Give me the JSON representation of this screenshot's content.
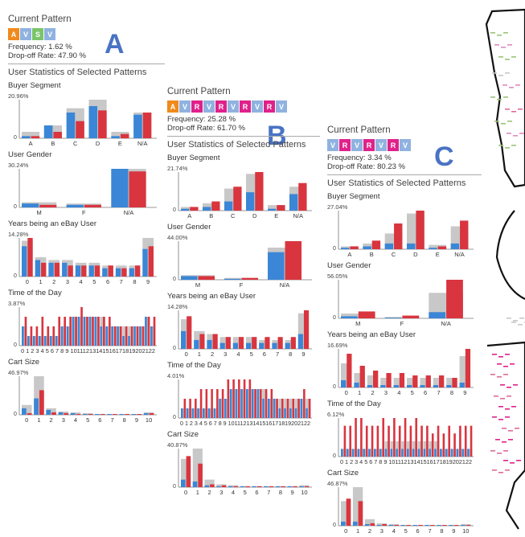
{
  "letters": [
    "A",
    "B",
    "C"
  ],
  "labels": {
    "current_pattern": "Current Pattern",
    "user_stats": "User Statistics of Selected Patterns",
    "frequency_prefix": "Frequency: ",
    "dropoff_prefix": "Drop-off Rate: "
  },
  "colors": {
    "blue": "#3b86d6",
    "red": "#d9353f",
    "gray": "#c8c8c8",
    "grid": "#666",
    "chip_A": "#f08a1c",
    "chip_V": "#8fb2e0",
    "chip_R": "#e0218a",
    "chip_S": "#7cc46a"
  },
  "panels": [
    {
      "id": "A",
      "pattern": [
        "A",
        "V",
        "S",
        "V"
      ],
      "frequency": "1.62 %",
      "dropoff": "47.90 %"
    },
    {
      "id": "B",
      "pattern": [
        "A",
        "V",
        "R",
        "V",
        "R",
        "V",
        "R",
        "V",
        "R",
        "V"
      ],
      "frequency": "25.28 %",
      "dropoff": "61.70 %"
    },
    {
      "id": "C",
      "pattern": [
        "V",
        "R",
        "V",
        "R",
        "V",
        "R",
        "V"
      ],
      "frequency": "3.34 %",
      "dropoff": "80.23 %"
    }
  ],
  "chart_data": [
    {
      "panel": "A",
      "title": "Buyer Segment",
      "ymax_label": "20.96%",
      "type": "bar",
      "categories": [
        "A",
        "B",
        "C",
        "D",
        "E",
        "N/A"
      ],
      "series": [
        {
          "name": "gray",
          "values": [
            3,
            6,
            14,
            18,
            3,
            12
          ]
        },
        {
          "name": "blue",
          "values": [
            1,
            6,
            12,
            15,
            1,
            11
          ]
        },
        {
          "name": "red",
          "values": [
            1,
            3,
            8,
            13,
            2,
            12
          ]
        }
      ]
    },
    {
      "panel": "A",
      "title": "User Gender",
      "ymax_label": "30.24%",
      "type": "bar",
      "categories": [
        "M",
        "F",
        "N/A"
      ],
      "series": [
        {
          "name": "gray",
          "values": [
            4,
            3,
            30
          ]
        },
        {
          "name": "blue",
          "values": [
            3,
            2,
            30
          ]
        },
        {
          "name": "red",
          "values": [
            2,
            2,
            28
          ]
        }
      ]
    },
    {
      "panel": "A",
      "title": "Years being an eBay User",
      "ymax_label": "14.28%",
      "type": "bar",
      "categories": [
        "0",
        "1",
        "2",
        "3",
        "4",
        "5",
        "6",
        "7",
        "8",
        "9"
      ],
      "series": [
        {
          "name": "gray",
          "values": [
            13,
            7,
            6,
            6,
            5,
            5,
            4,
            4,
            4,
            14
          ]
        },
        {
          "name": "blue",
          "values": [
            11,
            6,
            5,
            5,
            4,
            4,
            3,
            3,
            3,
            10
          ]
        },
        {
          "name": "red",
          "values": [
            14,
            5,
            5,
            4,
            4,
            4,
            4,
            3,
            4,
            11
          ]
        }
      ]
    },
    {
      "panel": "A",
      "title": "Time of the Day",
      "ymax_label": "3.87%",
      "type": "bar",
      "categories": [
        "0",
        "1",
        "2",
        "3",
        "4",
        "5",
        "6",
        "7",
        "8",
        "9",
        "10",
        "11",
        "12",
        "13",
        "14",
        "15",
        "16",
        "17",
        "18",
        "19",
        "20",
        "21",
        "22",
        "23"
      ],
      "tick_text": "0 1 2 3 4 5 6 7 8 9 10111213141516171819202122",
      "series": [
        {
          "name": "gray",
          "values": [
            2,
            1,
            1,
            1,
            1,
            1,
            1,
            2,
            2,
            3,
            3,
            3,
            3,
            3,
            3,
            2,
            2,
            2,
            2,
            2,
            2,
            2,
            3,
            2
          ]
        },
        {
          "name": "blue",
          "values": [
            2,
            1,
            1,
            1,
            1,
            1,
            1,
            2,
            2,
            3,
            3,
            3,
            3,
            3,
            2,
            2,
            2,
            2,
            1,
            1,
            2,
            2,
            3,
            2
          ]
        },
        {
          "name": "red",
          "values": [
            3,
            2,
            2,
            3,
            2,
            2,
            3,
            3,
            3,
            3,
            4,
            3,
            3,
            3,
            3,
            3,
            2,
            2,
            2,
            2,
            2,
            2,
            3,
            3
          ]
        }
      ]
    },
    {
      "panel": "A",
      "title": "Cart Size",
      "ymax_label": "46.97%",
      "type": "bar",
      "categories": [
        "0",
        "1",
        "2",
        "3",
        "4",
        "5",
        "6",
        "7",
        "8",
        "9",
        "10"
      ],
      "series": [
        {
          "name": "gray",
          "values": [
            12,
            47,
            8,
            4,
            3,
            2,
            1,
            1,
            1,
            1,
            3
          ]
        },
        {
          "name": "blue",
          "values": [
            8,
            20,
            6,
            3,
            2,
            1,
            1,
            1,
            1,
            1,
            2
          ]
        },
        {
          "name": "red",
          "values": [
            2,
            30,
            3,
            2,
            1,
            1,
            1,
            1,
            1,
            1,
            2
          ]
        }
      ]
    },
    {
      "panel": "B",
      "title": "Buyer Segment",
      "ymax_label": "21.74%",
      "type": "bar",
      "categories": [
        "A",
        "B",
        "C",
        "D",
        "E",
        "N/A"
      ],
      "series": [
        {
          "name": "gray",
          "values": [
            2,
            4,
            12,
            20,
            3,
            13
          ]
        },
        {
          "name": "blue",
          "values": [
            1,
            2,
            5,
            10,
            1,
            9
          ]
        },
        {
          "name": "red",
          "values": [
            2,
            5,
            13,
            21,
            3,
            15
          ]
        }
      ]
    },
    {
      "panel": "B",
      "title": "User Gender",
      "ymax_label": "44.00%",
      "type": "bar",
      "categories": [
        "M",
        "F",
        "N/A"
      ],
      "series": [
        {
          "name": "gray",
          "values": [
            5,
            2,
            35
          ]
        },
        {
          "name": "blue",
          "values": [
            4,
            1,
            30
          ]
        },
        {
          "name": "red",
          "values": [
            4,
            2,
            42
          ]
        }
      ]
    },
    {
      "panel": "B",
      "title": "Years being an eBay User",
      "ymax_label": "14.28%",
      "type": "bar",
      "categories": [
        "0",
        "1",
        "2",
        "3",
        "4",
        "5",
        "6",
        "7",
        "8",
        "9"
      ],
      "series": [
        {
          "name": "gray",
          "values": [
            10,
            6,
            5,
            4,
            4,
            4,
            3,
            3,
            3,
            12
          ]
        },
        {
          "name": "blue",
          "values": [
            6,
            3,
            3,
            2,
            2,
            2,
            2,
            2,
            2,
            5
          ]
        },
        {
          "name": "red",
          "values": [
            11,
            5,
            5,
            4,
            4,
            4,
            4,
            4,
            4,
            13
          ]
        }
      ]
    },
    {
      "panel": "B",
      "title": "Time of the Day",
      "ymax_label": "4.01%",
      "type": "bar",
      "categories": [
        "0",
        "1",
        "2",
        "3",
        "4",
        "5",
        "6",
        "7",
        "8",
        "9",
        "10",
        "11",
        "12",
        "13",
        "14",
        "15",
        "16",
        "17",
        "18",
        "19",
        "20",
        "21",
        "22",
        "23"
      ],
      "tick_text": "0 1 2 3 4 5 6 7 8 9 10111213141516171819202122",
      "series": [
        {
          "name": "gray",
          "values": [
            1,
            1,
            1,
            1,
            1,
            1,
            1,
            2,
            2,
            3,
            3,
            3,
            3,
            3,
            3,
            3,
            2,
            2,
            2,
            2,
            2,
            2,
            2,
            2
          ]
        },
        {
          "name": "blue",
          "values": [
            1,
            1,
            1,
            1,
            1,
            1,
            1,
            2,
            2,
            3,
            3,
            3,
            3,
            3,
            3,
            2,
            2,
            2,
            1,
            1,
            1,
            1,
            2,
            1
          ]
        },
        {
          "name": "red",
          "values": [
            2,
            2,
            2,
            3,
            3,
            3,
            3,
            3,
            4,
            4,
            4,
            4,
            4,
            3,
            3,
            3,
            3,
            2,
            2,
            2,
            2,
            2,
            3,
            2
          ]
        }
      ]
    },
    {
      "panel": "B",
      "title": "Cart Size",
      "ymax_label": "40.87%",
      "type": "bar",
      "categories": [
        "0",
        "1",
        "2",
        "3",
        "4",
        "5",
        "6",
        "7",
        "8",
        "9",
        "10"
      ],
      "series": [
        {
          "name": "gray",
          "values": [
            30,
            41,
            8,
            3,
            2,
            1,
            1,
            1,
            1,
            1,
            2
          ]
        },
        {
          "name": "blue",
          "values": [
            8,
            6,
            2,
            1,
            1,
            1,
            1,
            1,
            1,
            1,
            1
          ]
        },
        {
          "name": "red",
          "values": [
            33,
            25,
            3,
            2,
            1,
            1,
            1,
            1,
            1,
            1,
            1
          ]
        }
      ]
    },
    {
      "panel": "C",
      "title": "Buyer Segment",
      "ymax_label": "27.04%",
      "type": "bar",
      "categories": [
        "A",
        "B",
        "C",
        "D",
        "E",
        "N/A"
      ],
      "series": [
        {
          "name": "gray",
          "values": [
            2,
            4,
            11,
            25,
            3,
            16
          ]
        },
        {
          "name": "blue",
          "values": [
            1,
            2,
            4,
            4,
            1,
            4
          ]
        },
        {
          "name": "red",
          "values": [
            2,
            6,
            18,
            27,
            2,
            20
          ]
        }
      ]
    },
    {
      "panel": "C",
      "title": "User Gender",
      "ymax_label": "56.05%",
      "type": "bar",
      "categories": [
        "M",
        "F",
        "N/A"
      ],
      "series": [
        {
          "name": "gray",
          "values": [
            7,
            2,
            37
          ]
        },
        {
          "name": "blue",
          "values": [
            3,
            1,
            9
          ]
        },
        {
          "name": "red",
          "values": [
            10,
            4,
            56
          ]
        }
      ]
    },
    {
      "panel": "C",
      "title": "Years being an eBay User",
      "ymax_label": "16.69%",
      "type": "bar",
      "categories": [
        "0",
        "1",
        "2",
        "3",
        "4",
        "5",
        "6",
        "7",
        "8",
        "9"
      ],
      "series": [
        {
          "name": "gray",
          "values": [
            10,
            6,
            5,
            4,
            4,
            4,
            4,
            4,
            4,
            13
          ]
        },
        {
          "name": "blue",
          "values": [
            3,
            2,
            1,
            1,
            1,
            1,
            1,
            1,
            1,
            2
          ]
        },
        {
          "name": "red",
          "values": [
            14,
            9,
            7,
            6,
            6,
            5,
            5,
            5,
            4,
            16
          ]
        }
      ]
    },
    {
      "panel": "C",
      "title": "Time of the Day",
      "ymax_label": "6.12%",
      "type": "bar",
      "categories": [
        "0",
        "1",
        "2",
        "3",
        "4",
        "5",
        "6",
        "7",
        "8",
        "9",
        "10",
        "11",
        "12",
        "13",
        "14",
        "15",
        "16",
        "17",
        "18",
        "19",
        "20",
        "21",
        "22",
        "23"
      ],
      "tick_text": "0 1 2 3 4 5 6 7 8 9 10111213141516171819202122",
      "series": [
        {
          "name": "gray",
          "values": [
            1,
            1,
            1,
            1,
            1,
            1,
            1,
            1,
            2,
            2,
            2,
            2,
            2,
            2,
            2,
            2,
            2,
            2,
            1,
            1,
            1,
            1,
            1,
            1
          ]
        },
        {
          "name": "blue",
          "values": [
            1,
            1,
            1,
            1,
            1,
            1,
            1,
            1,
            1,
            1,
            1,
            1,
            1,
            1,
            1,
            1,
            1,
            1,
            1,
            1,
            1,
            1,
            1,
            1
          ]
        },
        {
          "name": "red",
          "values": [
            4,
            4,
            5,
            5,
            4,
            4,
            4,
            5,
            4,
            5,
            4,
            5,
            4,
            5,
            4,
            4,
            3,
            4,
            3,
            4,
            3,
            4,
            4,
            4
          ]
        }
      ]
    },
    {
      "panel": "C",
      "title": "Cart Size",
      "ymax_label": "46.87%",
      "type": "bar",
      "categories": [
        "0",
        "1",
        "2",
        "3",
        "4",
        "5",
        "6",
        "7",
        "8",
        "9",
        "10"
      ],
      "series": [
        {
          "name": "gray",
          "values": [
            30,
            47,
            8,
            3,
            2,
            1,
            1,
            1,
            1,
            1,
            2
          ]
        },
        {
          "name": "blue",
          "values": [
            5,
            5,
            2,
            1,
            1,
            1,
            1,
            1,
            1,
            1,
            1
          ]
        },
        {
          "name": "red",
          "values": [
            33,
            30,
            3,
            2,
            1,
            1,
            1,
            1,
            1,
            1,
            1
          ]
        }
      ]
    }
  ]
}
